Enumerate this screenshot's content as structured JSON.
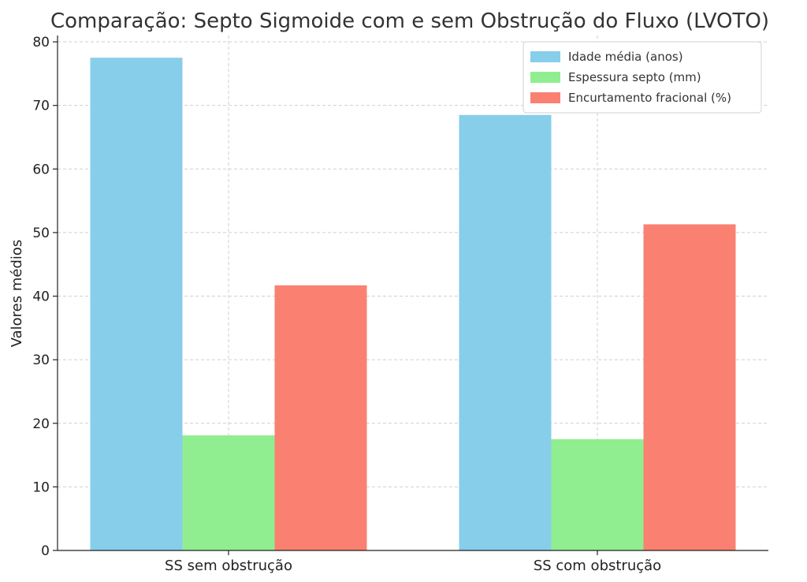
{
  "chart_data": {
    "type": "bar",
    "title": "Comparação: Septo Sigmoide com e sem Obstrução do Fluxo (LVOTO)",
    "xlabel": "",
    "ylabel": "Valores médios",
    "ylim": [
      0,
      81
    ],
    "yticks": [
      0,
      10,
      20,
      30,
      40,
      50,
      60,
      70,
      80
    ],
    "grid": true,
    "legend_position": "top-right",
    "categories": [
      "SS sem obstrução",
      "SS com obstrução"
    ],
    "series": [
      {
        "name": "Idade média (anos)",
        "color": "#87CEEB",
        "values": [
          77.5,
          68.5
        ]
      },
      {
        "name": "Espessura septo (mm)",
        "color": "#90EE90",
        "values": [
          18.1,
          17.5
        ]
      },
      {
        "name": "Encurtamento fracional (%)",
        "color": "#FA8072",
        "values": [
          41.7,
          51.3
        ]
      }
    ]
  }
}
